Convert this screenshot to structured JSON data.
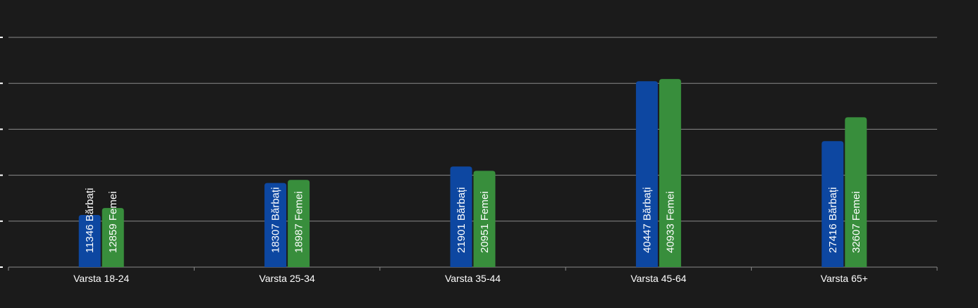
{
  "chart_data": {
    "type": "bar",
    "categories": [
      "Varsta 18-24",
      "Varsta 25-34",
      "Varsta 35-44",
      "Varsta 45-64",
      "Varsta 65+"
    ],
    "series": [
      {
        "label_suffix": "Bărbați",
        "color": "#0d47a1",
        "values": [
          11346,
          18307,
          21901,
          40447,
          27416
        ]
      },
      {
        "label_suffix": "Femei",
        "color": "#388e3c",
        "values": [
          12859,
          18987,
          20951,
          40933,
          32607
        ]
      }
    ],
    "ylim": [
      0,
      50000
    ],
    "grid": true,
    "grid_color": "#8a8a8a",
    "label_color": "#ffffff",
    "background": "#1b1b1b"
  }
}
